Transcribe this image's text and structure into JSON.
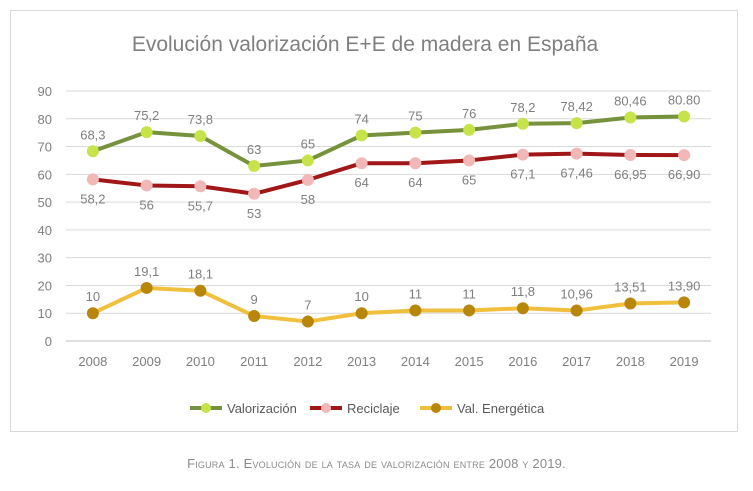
{
  "chart_data": {
    "type": "line",
    "title": "Evolución valorización E+E de madera en España",
    "categories": [
      "2008",
      "2009",
      "2010",
      "2011",
      "2012",
      "2013",
      "2014",
      "2015",
      "2016",
      "2017",
      "2018",
      "2019"
    ],
    "ylim": [
      0,
      90
    ],
    "yticks": [
      0,
      10,
      20,
      30,
      40,
      50,
      60,
      70,
      80,
      90
    ],
    "grid": true,
    "legend_position": "bottom",
    "series": [
      {
        "name": "Valorización",
        "color": "#76923c",
        "marker_color": "#c6e44a",
        "values": [
          68.3,
          75.2,
          73.8,
          63,
          65,
          74,
          75,
          76,
          78.2,
          78.42,
          80.46,
          80.8
        ],
        "labels": [
          "68,3",
          "75,2",
          "73,8",
          "63",
          "65",
          "74",
          "75",
          "76",
          "78,2",
          "78,42",
          "80,46",
          "80.80"
        ],
        "label_position": "above"
      },
      {
        "name": "Reciclaje",
        "color": "#a11717",
        "marker_color": "#f2b8b8",
        "values": [
          58.2,
          56,
          55.7,
          53,
          58,
          64,
          64,
          65,
          67.1,
          67.46,
          66.95,
          66.9
        ],
        "labels": [
          "58,2",
          "56",
          "55,7",
          "53",
          "58",
          "64",
          "64",
          "65",
          "67,1",
          "67,46",
          "66,95",
          "66,90"
        ],
        "label_position": "below"
      },
      {
        "name": "Val. Energética",
        "color": "#f0bf3c",
        "marker_color": "#b8860b",
        "values": [
          10,
          19.1,
          18.1,
          9,
          7,
          10,
          11,
          11,
          11.8,
          10.96,
          13.51,
          13.9
        ],
        "labels": [
          "10",
          "19,1",
          "18,1",
          "9",
          "7",
          "10",
          "11",
          "11",
          "11,8",
          "10,96",
          "13,51",
          "13,90"
        ],
        "label_position": "above"
      }
    ]
  },
  "caption": {
    "figure": "Figura 1.",
    "text": "Evolución de la tasa de valorización entre 2008 y 2019."
  }
}
